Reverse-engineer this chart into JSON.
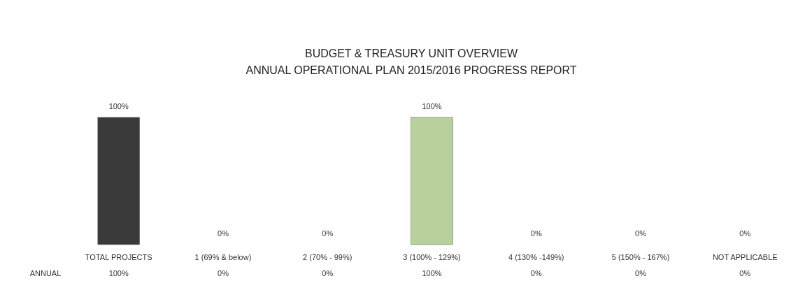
{
  "chart_data": {
    "type": "bar",
    "title": "BUDGET & TREASURY UNIT OVERVIEW",
    "subtitle": "ANNUAL OPERATIONAL PLAN 2015/2016 PROGRESS REPORT",
    "categories": [
      "TOTAL PROJECTS",
      "1 (69% & below)",
      "2 (70% - 99%)",
      "3 (100% - 129%)",
      "4 (130% -149%)",
      "5 (150% - 167%)",
      "NOT APPLICABLE"
    ],
    "series": [
      {
        "name": "ANNUAL",
        "colors": [
          "#3a3a3a",
          "#3a3a3a",
          "#3a3a3a",
          "#b8d19c",
          "#3a3a3a",
          "#3a3a3a",
          "#3a3a3a"
        ],
        "values": [
          100,
          0,
          0,
          100,
          0,
          0,
          0
        ],
        "value_labels": [
          "100%",
          "0%",
          "0%",
          "100%",
          "0%",
          "0%",
          "0%"
        ]
      }
    ],
    "data_labels": true
  }
}
